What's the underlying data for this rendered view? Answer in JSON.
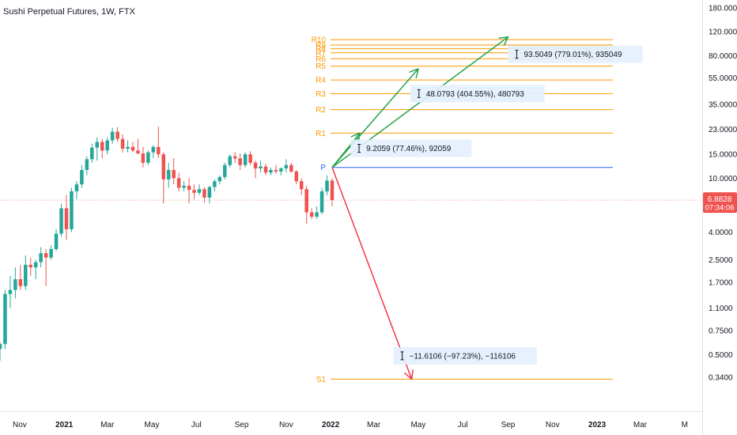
{
  "chart_data": {
    "type": "candlestick",
    "title": "Sushi Perpetual Futures, 1W, FTX",
    "y_scale": "log",
    "ylim": [
      0.25,
      185
    ],
    "y_ticks": [
      "180.0000",
      "120.0000",
      "80.0000",
      "55.0000",
      "35.0000",
      "23.0000",
      "15.0000",
      "10.0000",
      "6.0000",
      "4.0000",
      "2.5000",
      "1.7000",
      "1.1000",
      "0.7500",
      "0.5000",
      "0.3400"
    ],
    "x_ticks": [
      {
        "label": "Nov",
        "date": "2020-11-01",
        "bold": false
      },
      {
        "label": "2021",
        "date": "2021-01-01",
        "bold": true
      },
      {
        "label": "Mar",
        "date": "2021-03-01",
        "bold": false
      },
      {
        "label": "May",
        "date": "2021-05-01",
        "bold": false
      },
      {
        "label": "Jul",
        "date": "2021-07-01",
        "bold": false
      },
      {
        "label": "Sep",
        "date": "2021-09-01",
        "bold": false
      },
      {
        "label": "Nov",
        "date": "2021-11-01",
        "bold": false
      },
      {
        "label": "2022",
        "date": "2022-01-01",
        "bold": true
      },
      {
        "label": "Mar",
        "date": "2022-03-01",
        "bold": false
      },
      {
        "label": "May",
        "date": "2022-05-01",
        "bold": false
      },
      {
        "label": "Jul",
        "date": "2022-07-01",
        "bold": false
      },
      {
        "label": "Sep",
        "date": "2022-09-01",
        "bold": false
      },
      {
        "label": "Nov",
        "date": "2022-11-01",
        "bold": false
      },
      {
        "label": "2023",
        "date": "2023-01-01",
        "bold": true
      },
      {
        "label": "Mar",
        "date": "2023-03-01",
        "bold": false
      },
      {
        "label": "M",
        "date": "2023-05-01",
        "bold": false
      }
    ],
    "x_range": [
      "2020-10-05",
      "2023-05-25"
    ],
    "candles": [
      {
        "date": "2020-10-05",
        "o": 0.55,
        "h": 0.62,
        "l": 0.45,
        "c": 0.6
      },
      {
        "date": "2020-10-12",
        "o": 0.6,
        "h": 1.5,
        "l": 0.55,
        "c": 1.4
      },
      {
        "date": "2020-10-19",
        "o": 1.4,
        "h": 1.9,
        "l": 1.1,
        "c": 1.5
      },
      {
        "date": "2020-10-26",
        "o": 1.5,
        "h": 2.2,
        "l": 1.3,
        "c": 1.8
      },
      {
        "date": "2020-11-02",
        "o": 1.8,
        "h": 2.3,
        "l": 1.5,
        "c": 1.6
      },
      {
        "date": "2020-11-09",
        "o": 1.6,
        "h": 2.7,
        "l": 1.5,
        "c": 2.3
      },
      {
        "date": "2020-11-16",
        "o": 2.3,
        "h": 2.6,
        "l": 1.9,
        "c": 2.2
      },
      {
        "date": "2020-11-23",
        "o": 2.2,
        "h": 2.5,
        "l": 1.8,
        "c": 2.4
      },
      {
        "date": "2020-11-30",
        "o": 2.4,
        "h": 3.1,
        "l": 2.2,
        "c": 2.8
      },
      {
        "date": "2020-12-07",
        "o": 2.8,
        "h": 3.0,
        "l": 1.6,
        "c": 2.6
      },
      {
        "date": "2020-12-14",
        "o": 2.6,
        "h": 3.2,
        "l": 2.5,
        "c": 3.0
      },
      {
        "date": "2020-12-21",
        "o": 3.0,
        "h": 4.2,
        "l": 2.9,
        "c": 3.9
      },
      {
        "date": "2020-12-28",
        "o": 3.9,
        "h": 6.5,
        "l": 3.7,
        "c": 6.0
      },
      {
        "date": "2021-01-04",
        "o": 6.0,
        "h": 7.5,
        "l": 3.5,
        "c": 4.2
      },
      {
        "date": "2021-01-11",
        "o": 4.2,
        "h": 8.5,
        "l": 4.0,
        "c": 8.0
      },
      {
        "date": "2021-01-18",
        "o": 8.0,
        "h": 9.5,
        "l": 7.0,
        "c": 9.0
      },
      {
        "date": "2021-01-25",
        "o": 9.0,
        "h": 12.5,
        "l": 8.5,
        "c": 11.5
      },
      {
        "date": "2021-02-01",
        "o": 11.5,
        "h": 14.5,
        "l": 10.5,
        "c": 13.8
      },
      {
        "date": "2021-02-08",
        "o": 13.8,
        "h": 18.0,
        "l": 13.0,
        "c": 16.8
      },
      {
        "date": "2021-02-15",
        "o": 16.8,
        "h": 20.0,
        "l": 13.5,
        "c": 18.5
      },
      {
        "date": "2021-02-22",
        "o": 18.5,
        "h": 19.5,
        "l": 14.0,
        "c": 16.0
      },
      {
        "date": "2021-03-01",
        "o": 16.0,
        "h": 20.0,
        "l": 15.0,
        "c": 19.0
      },
      {
        "date": "2021-03-08",
        "o": 19.0,
        "h": 23.5,
        "l": 18.0,
        "c": 22.0
      },
      {
        "date": "2021-03-15",
        "o": 22.0,
        "h": 23.8,
        "l": 18.5,
        "c": 19.5
      },
      {
        "date": "2021-03-22",
        "o": 19.5,
        "h": 21.0,
        "l": 15.5,
        "c": 16.5
      },
      {
        "date": "2021-03-29",
        "o": 16.5,
        "h": 19.0,
        "l": 15.5,
        "c": 17.0
      },
      {
        "date": "2021-04-05",
        "o": 17.0,
        "h": 18.5,
        "l": 15.5,
        "c": 16.0
      },
      {
        "date": "2021-04-12",
        "o": 16.0,
        "h": 19.5,
        "l": 15.0,
        "c": 15.2
      },
      {
        "date": "2021-04-19",
        "o": 15.2,
        "h": 17.0,
        "l": 12.0,
        "c": 13.0
      },
      {
        "date": "2021-04-26",
        "o": 13.0,
        "h": 16.0,
        "l": 12.5,
        "c": 15.5
      },
      {
        "date": "2021-05-03",
        "o": 15.5,
        "h": 17.5,
        "l": 14.0,
        "c": 17.0
      },
      {
        "date": "2021-05-10",
        "o": 17.0,
        "h": 24.0,
        "l": 14.0,
        "c": 15.0
      },
      {
        "date": "2021-05-17",
        "o": 15.0,
        "h": 15.5,
        "l": 6.5,
        "c": 9.8
      },
      {
        "date": "2021-05-24",
        "o": 9.8,
        "h": 13.0,
        "l": 8.5,
        "c": 11.5
      },
      {
        "date": "2021-05-31",
        "o": 11.5,
        "h": 14.0,
        "l": 9.0,
        "c": 10.0
      },
      {
        "date": "2021-06-07",
        "o": 10.0,
        "h": 11.0,
        "l": 8.0,
        "c": 8.5
      },
      {
        "date": "2021-06-14",
        "o": 8.5,
        "h": 9.5,
        "l": 8.0,
        "c": 8.8
      },
      {
        "date": "2021-06-21",
        "o": 8.8,
        "h": 10.0,
        "l": 6.5,
        "c": 8.2
      },
      {
        "date": "2021-06-28",
        "o": 8.2,
        "h": 9.0,
        "l": 7.0,
        "c": 7.8
      },
      {
        "date": "2021-07-05",
        "o": 7.8,
        "h": 9.0,
        "l": 7.5,
        "c": 8.3
      },
      {
        "date": "2021-07-12",
        "o": 8.3,
        "h": 8.6,
        "l": 6.6,
        "c": 7.2
      },
      {
        "date": "2021-07-19",
        "o": 7.2,
        "h": 8.8,
        "l": 6.5,
        "c": 8.6
      },
      {
        "date": "2021-07-26",
        "o": 8.6,
        "h": 9.8,
        "l": 8.0,
        "c": 9.5
      },
      {
        "date": "2021-08-02",
        "o": 9.5,
        "h": 10.5,
        "l": 9.0,
        "c": 10.2
      },
      {
        "date": "2021-08-09",
        "o": 10.2,
        "h": 13.0,
        "l": 9.8,
        "c": 12.5
      },
      {
        "date": "2021-08-16",
        "o": 12.5,
        "h": 15.0,
        "l": 12.0,
        "c": 14.5
      },
      {
        "date": "2021-08-23",
        "o": 14.5,
        "h": 15.5,
        "l": 13.0,
        "c": 14.0
      },
      {
        "date": "2021-08-30",
        "o": 14.0,
        "h": 15.2,
        "l": 11.5,
        "c": 12.5
      },
      {
        "date": "2021-09-06",
        "o": 12.5,
        "h": 15.5,
        "l": 12.0,
        "c": 15.0
      },
      {
        "date": "2021-09-13",
        "o": 15.0,
        "h": 15.8,
        "l": 12.5,
        "c": 13.0
      },
      {
        "date": "2021-09-20",
        "o": 13.0,
        "h": 13.5,
        "l": 10.0,
        "c": 11.8
      },
      {
        "date": "2021-09-27",
        "o": 11.8,
        "h": 13.5,
        "l": 11.0,
        "c": 12.2
      },
      {
        "date": "2021-10-04",
        "o": 12.2,
        "h": 12.8,
        "l": 10.5,
        "c": 11.0
      },
      {
        "date": "2021-10-11",
        "o": 11.0,
        "h": 12.0,
        "l": 10.5,
        "c": 11.5
      },
      {
        "date": "2021-10-18",
        "o": 11.5,
        "h": 12.5,
        "l": 10.8,
        "c": 11.2
      },
      {
        "date": "2021-10-25",
        "o": 11.2,
        "h": 12.0,
        "l": 10.5,
        "c": 11.8
      },
      {
        "date": "2021-11-01",
        "o": 11.8,
        "h": 13.8,
        "l": 11.0,
        "c": 12.5
      },
      {
        "date": "2021-11-08",
        "o": 12.5,
        "h": 13.0,
        "l": 11.0,
        "c": 11.2
      },
      {
        "date": "2021-11-15",
        "o": 11.2,
        "h": 11.5,
        "l": 9.0,
        "c": 9.5
      },
      {
        "date": "2021-11-22",
        "o": 9.5,
        "h": 10.0,
        "l": 7.5,
        "c": 8.3
      },
      {
        "date": "2021-11-29",
        "o": 8.3,
        "h": 8.8,
        "l": 4.6,
        "c": 5.6
      },
      {
        "date": "2021-12-06",
        "o": 5.6,
        "h": 6.0,
        "l": 5.0,
        "c": 5.2
      },
      {
        "date": "2021-12-13",
        "o": 5.2,
        "h": 6.2,
        "l": 5.0,
        "c": 5.6
      },
      {
        "date": "2021-12-20",
        "o": 5.6,
        "h": 8.5,
        "l": 5.4,
        "c": 8.0
      },
      {
        "date": "2021-12-27",
        "o": 8.0,
        "h": 10.5,
        "l": 7.5,
        "c": 9.6
      },
      {
        "date": "2022-01-03",
        "o": 9.6,
        "h": 10.0,
        "l": 6.2,
        "c": 6.9
      }
    ],
    "current_price": {
      "value": 6.8828,
      "label": "6.8828",
      "timer": "07:34:06"
    },
    "pivot": {
      "date": "2022-01-03",
      "value": 12.0,
      "label": "P"
    },
    "levels": [
      {
        "name": "R10",
        "value": 105.0
      },
      {
        "name": "R9",
        "value": 96.0
      },
      {
        "name": "R8",
        "value": 90.0
      },
      {
        "name": "R7",
        "value": 84.0
      },
      {
        "name": "R6",
        "value": 76.0
      },
      {
        "name": "R5",
        "value": 67.0
      },
      {
        "name": "R4",
        "value": 53.0
      },
      {
        "name": "R3",
        "value": 42.0
      },
      {
        "name": "R2",
        "value": 32.0
      },
      {
        "name": "R1",
        "value": 21.5
      },
      {
        "name": "S1",
        "value": 0.33
      }
    ],
    "projections": [
      {
        "color": "#26a24a",
        "to_date": "2022-09-01",
        "to_value": 110.0
      },
      {
        "color": "#26a24a",
        "to_date": "2022-05-01",
        "to_value": 64.0
      },
      {
        "color": "#26a24a",
        "to_date": "2022-02-10",
        "to_value": 21.5
      },
      {
        "color": "#f23645",
        "to_date": "2022-04-22",
        "to_value": 0.33
      }
    ],
    "measurements": [
      {
        "text": "93.5049 (779.01%), 935049",
        "date": "2022-09-01",
        "value": 82
      },
      {
        "text": "48.0793 (404.55%), 480793",
        "date": "2022-04-20",
        "value": 42
      },
      {
        "text": "9.2059 (77.46%), 92059",
        "date": "2022-01-28",
        "value": 16.6
      },
      {
        "text": "−11.6106 (−97.23%), −116106",
        "date": "2022-03-28",
        "value": 0.49
      }
    ],
    "colors": {
      "up": "#26a69a",
      "down": "#ef5350",
      "level": "#ff9800",
      "pivot": "#2962ff",
      "projection_up": "#26a24a",
      "projection_down": "#f23645",
      "price_tag": "#ef5350"
    },
    "grid": false,
    "legend": "none"
  }
}
